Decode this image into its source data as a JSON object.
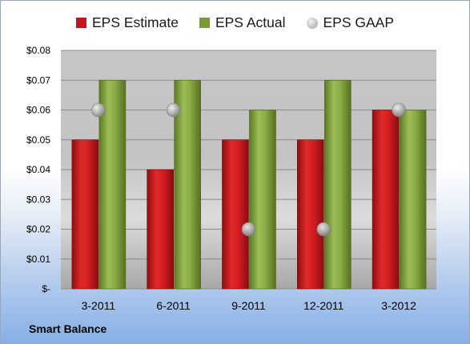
{
  "company": "Smart Balance",
  "chart_data": {
    "type": "bar",
    "title": "",
    "xlabel": "",
    "ylabel": "",
    "categories": [
      "3-2011",
      "6-2011",
      "9-2011",
      "12-2011",
      "3-2012"
    ],
    "series": [
      {
        "name": "EPS Estimate",
        "type": "bar",
        "color": "#c0181e",
        "values": [
          0.05,
          0.04,
          0.05,
          0.05,
          0.06
        ]
      },
      {
        "name": "EPS Actual",
        "type": "bar",
        "color": "#7a9a3a",
        "values": [
          0.07,
          0.07,
          0.06,
          0.07,
          0.06
        ]
      },
      {
        "name": "EPS GAAP",
        "type": "scatter",
        "color": "#b0b0b0",
        "values": [
          0.06,
          0.06,
          0.02,
          0.02,
          0.06
        ]
      }
    ],
    "ylim": [
      0,
      0.08
    ],
    "yticks": [
      0,
      0.01,
      0.02,
      0.03,
      0.04,
      0.05,
      0.06,
      0.07,
      0.08
    ],
    "ytick_labels": [
      "$-",
      "$0.01",
      "$0.02",
      "$0.03",
      "$0.04",
      "$0.05",
      "$0.06",
      "$0.07",
      "$0.08"
    ],
    "grid": true,
    "legend": "top"
  }
}
